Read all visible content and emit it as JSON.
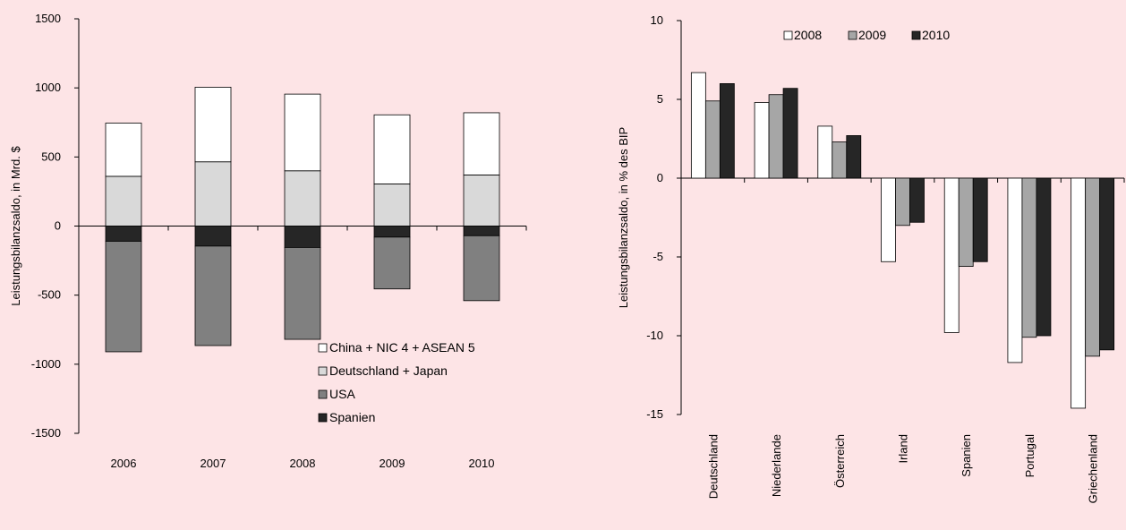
{
  "colors": {
    "background": "#fde4e6",
    "china": "#ffffff",
    "deutschland_japan": "#d9d9d9",
    "usa": "#808080",
    "spanien": "#262626",
    "y2008": "#ffffff",
    "y2009": "#a6a6a6",
    "y2010": "#262626"
  },
  "chart_data": [
    {
      "type": "bar",
      "stacked": true,
      "ylabel": "Leistungsbilanzsaldo, in Mrd. $",
      "ylim": [
        -1500,
        1500
      ],
      "yticks": [
        1500,
        1000,
        500,
        0,
        -500,
        -1000,
        -1500
      ],
      "categories": [
        "2006",
        "2007",
        "2008",
        "2009",
        "2010"
      ],
      "legend_position": "bottom-right",
      "series": [
        {
          "name": "China + NIC 4 + ASEAN 5",
          "color_key": "china",
          "values": [
            385,
            540,
            555,
            500,
            450
          ]
        },
        {
          "name": "Deutschland + Japan",
          "color_key": "deutschland_japan",
          "values": [
            360,
            465,
            400,
            305,
            370
          ]
        },
        {
          "name": "USA",
          "color_key": "usa",
          "values": [
            -800,
            -720,
            -665,
            -375,
            -470
          ]
        },
        {
          "name": "Spanien",
          "color_key": "spanien",
          "values": [
            -110,
            -145,
            -155,
            -80,
            -70
          ]
        }
      ]
    },
    {
      "type": "bar",
      "ylabel": "Leistungsbilanzsaldo, in  % des BIP",
      "ylim": [
        -15,
        10
      ],
      "yticks": [
        10,
        5,
        0,
        -5,
        -10,
        -15
      ],
      "categories": [
        "Deutschland",
        "Niederlande",
        "Österreich",
        "Irland",
        "Spanien",
        "Portugal",
        "Griechenland"
      ],
      "legend_position": "top",
      "series": [
        {
          "name": "2008",
          "color_key": "y2008",
          "values": [
            6.7,
            4.8,
            3.3,
            -5.3,
            -9.8,
            -11.7,
            -14.6
          ]
        },
        {
          "name": "2009",
          "color_key": "y2009",
          "values": [
            4.9,
            5.3,
            2.3,
            -3.0,
            -5.6,
            -10.1,
            -11.3
          ]
        },
        {
          "name": "2010",
          "color_key": "y2010",
          "values": [
            6.0,
            5.7,
            2.7,
            -2.8,
            -5.3,
            -10.0,
            -10.9
          ]
        }
      ]
    }
  ]
}
